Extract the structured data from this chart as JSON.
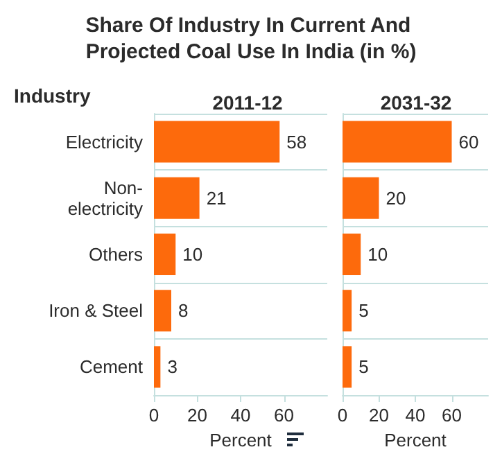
{
  "chart_data": [
    {
      "type": "bar",
      "orientation": "horizontal",
      "title": "Share Of Industry In Current And Projected Coal Use In India (in %)",
      "subtitle": "2011-12",
      "ylabel": "Industry",
      "xlabel": "Percent",
      "categories": [
        "Electricity",
        "Non-electricity",
        "Others",
        "Iron & Steel",
        "Cement"
      ],
      "values": [
        58,
        21,
        10,
        8,
        3
      ],
      "color": "#fd6a0c",
      "data_labels": true,
      "xlim": [
        0,
        80
      ],
      "xticks": [
        0,
        20,
        40,
        60
      ],
      "grid": "y"
    },
    {
      "type": "bar",
      "orientation": "horizontal",
      "subtitle": "2031-32",
      "xlabel": "Percent",
      "categories": [
        null,
        null,
        null,
        null,
        null
      ],
      "values": [
        60,
        20,
        10,
        5,
        5
      ],
      "color": "#fd6a0c",
      "data_labels": true,
      "xlim": [
        0,
        80
      ],
      "xticks": [
        0,
        20,
        40,
        60
      ],
      "grid": "y"
    }
  ]
}
